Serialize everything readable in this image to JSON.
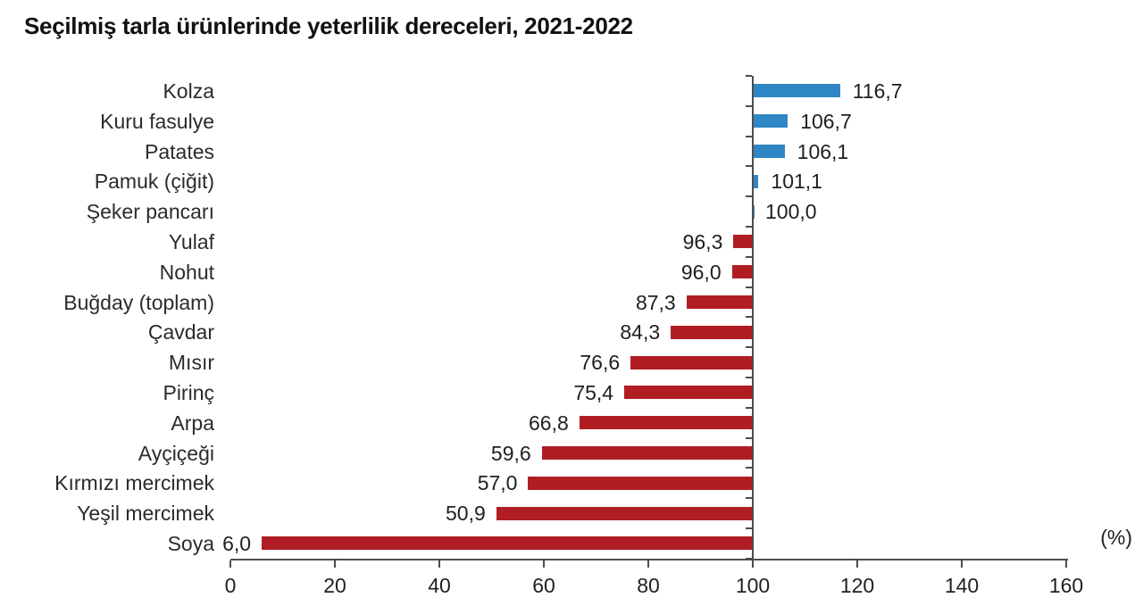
{
  "title": "Seçilmiş tarla ürünlerinde yeterlilik dereceleri, 2021-2022",
  "chart_data": {
    "type": "bar",
    "orientation": "horizontal",
    "title": "Seçilmiş tarla ürünlerinde yeterlilik dereceleri, 2021-2022",
    "categories": [
      "Kolza",
      "Kuru fasulye",
      "Patates",
      "Pamuk (çiğit)",
      "Şeker pancarı",
      "Yulaf",
      "Nohut",
      "Buğday (toplam)",
      "Çavdar",
      "Mısır",
      "Pirinç",
      "Arpa",
      "Ayçiçeği",
      "Kırmızı mercimek",
      "Yeşil mercimek",
      "Soya"
    ],
    "values": [
      116.7,
      106.7,
      106.1,
      101.1,
      100.0,
      96.3,
      96.0,
      87.3,
      84.3,
      76.6,
      75.4,
      66.8,
      59.6,
      57.0,
      50.9,
      6.0
    ],
    "value_labels": [
      "116,7",
      "106,7",
      "106,1",
      "101,1",
      "100,0",
      "96,3",
      "96,0",
      "87,3",
      "84,3",
      "76,6",
      "75,4",
      "66,8",
      "59,6",
      "57,0",
      "50,9",
      "6,0"
    ],
    "baseline": 100,
    "xlim": [
      0,
      160
    ],
    "xticks": [
      0,
      20,
      40,
      60,
      80,
      100,
      120,
      140,
      160
    ],
    "xtick_labels": [
      "0",
      "20",
      "40",
      "60",
      "80",
      "100",
      "120",
      "140",
      "160"
    ],
    "xlabel": "(%)",
    "grid": false,
    "legend": "none",
    "colors": {
      "above_baseline": "#2f86c4",
      "below_baseline": "#b01e23"
    }
  }
}
